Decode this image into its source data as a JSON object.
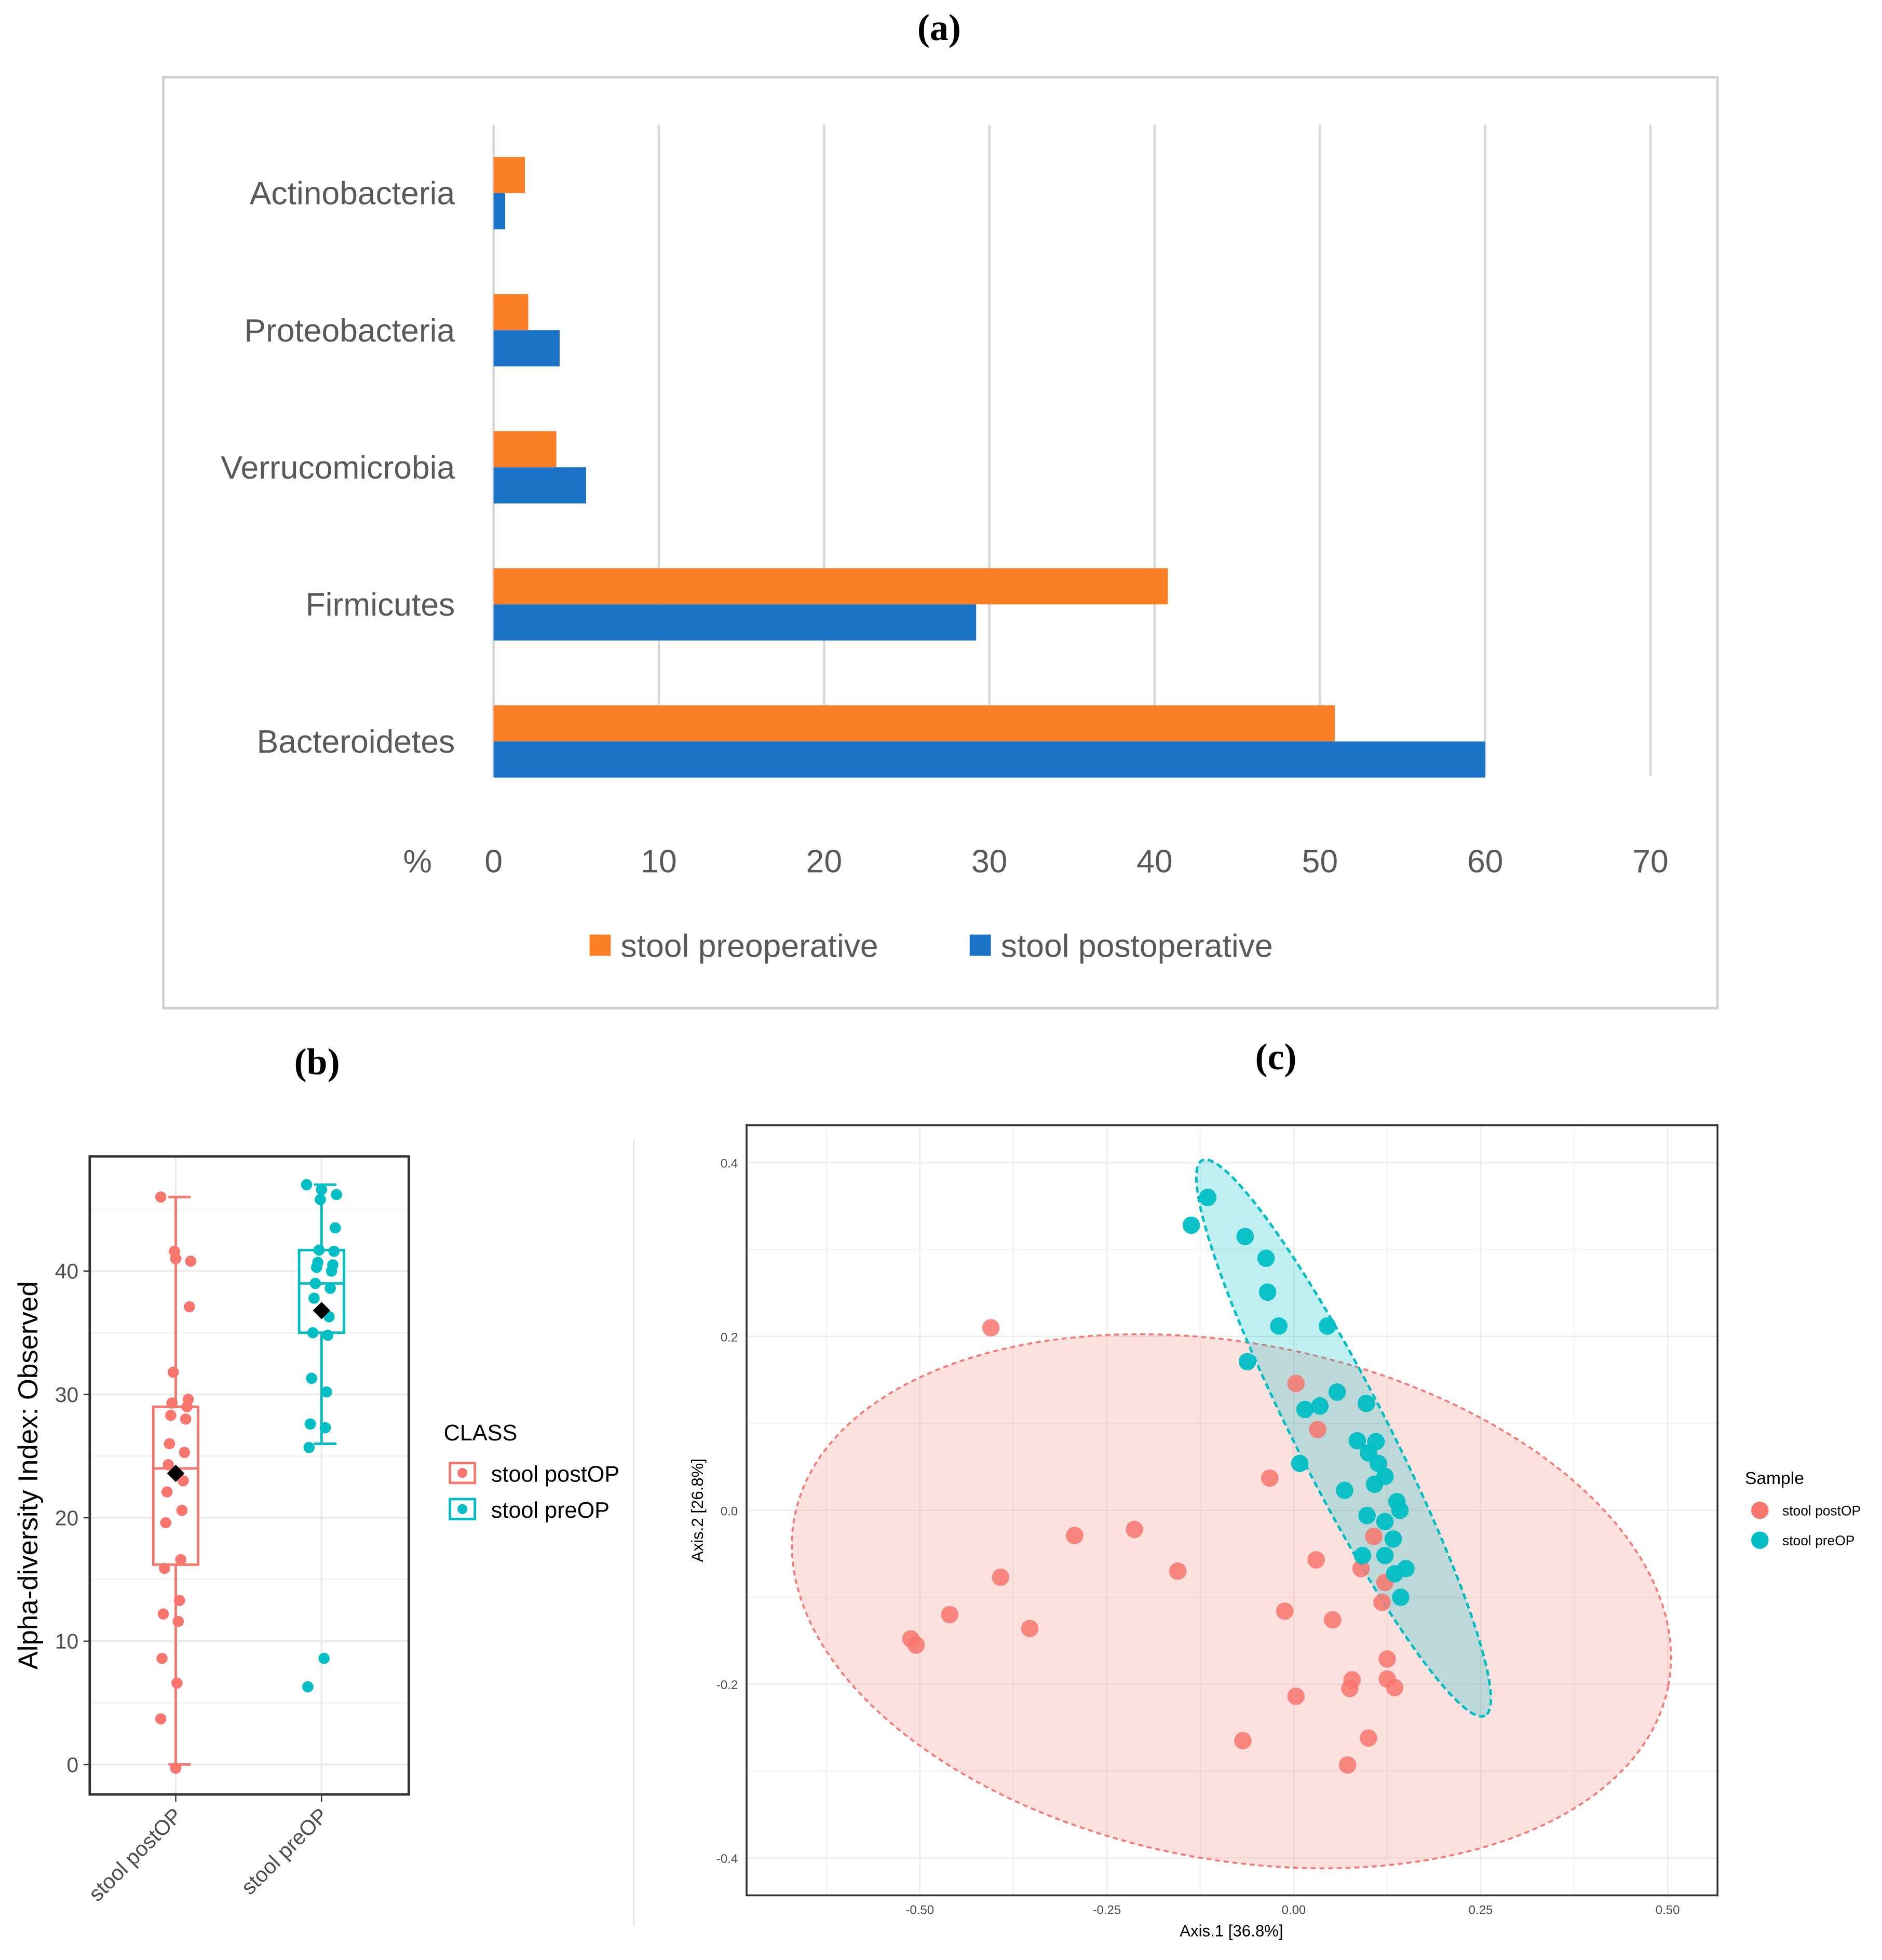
{
  "panel_labels": {
    "a": "(a)",
    "b": "(b)",
    "c": "(c)"
  },
  "colors": {
    "pre": "#fd7f27",
    "post": "#1b73c8",
    "postOP": "#f8766d",
    "preOP": "#00bfc4",
    "grid": "#d9d9d9"
  },
  "chart_data": [
    {
      "type": "bar",
      "orientation": "horizontal",
      "categories": [
        "Actinobacteria",
        "Proteobacteria",
        "Verrucomicrobia",
        "Firmicutes",
        "Bacteroidetes"
      ],
      "series": [
        {
          "name": "stool preoperative",
          "values": [
            1.9,
            2.1,
            3.8,
            40.8,
            50.9
          ]
        },
        {
          "name": "stool postoperative",
          "values": [
            0.7,
            4.0,
            5.6,
            29.2,
            60.0
          ]
        }
      ],
      "xlabel": "%",
      "xlim": [
        0,
        70
      ],
      "xticks": [
        "0",
        "10",
        "20",
        "30",
        "40",
        "50",
        "60",
        "70"
      ],
      "grid": true,
      "legend": "bottom"
    },
    {
      "type": "box",
      "ylabel": "Alpha-diversity Index: Observed",
      "ylim": [
        -2.5,
        49
      ],
      "yticks": [
        "0",
        "10",
        "20",
        "30",
        "40"
      ],
      "categories": [
        "stool postOP",
        "stool preOP"
      ],
      "legend_title": "CLASS",
      "legend": "right",
      "groups": [
        {
          "name": "stool postOP",
          "min": 0,
          "q1": 16.2,
          "median": 24,
          "q3": 29,
          "max": 46,
          "mean": 23.6,
          "points": [
            46,
            41,
            40.8,
            41.6,
            37.1,
            31.8,
            29.6,
            29.3,
            29,
            28.3,
            28,
            26,
            25.3,
            24.3,
            23,
            22.1,
            20.6,
            19.6,
            16.6,
            15.9,
            13.3,
            12.2,
            11.6,
            8.6,
            6.6,
            3.7,
            -0.3
          ]
        },
        {
          "name": "stool preOP",
          "min": 26,
          "q1": 35,
          "median": 39,
          "q3": 41.7,
          "max": 47,
          "mean": 36.8,
          "points": [
            47,
            46.6,
            46.2,
            45.8,
            43.5,
            41.7,
            41.6,
            40.7,
            40.5,
            40.3,
            40,
            39,
            38.6,
            37.8,
            36.3,
            35,
            34.8,
            31.3,
            30.2,
            27.6,
            27.3,
            25.7,
            8.6,
            6.3
          ]
        }
      ]
    },
    {
      "type": "scatter",
      "xlabel": "Axis.1   [36.8%]",
      "ylabel": "Axis.2   [26.8%]",
      "xlim": [
        -0.73,
        0.57
      ],
      "ylim": [
        -0.44,
        0.445
      ],
      "xticks": [
        "-0.50",
        "-0.25",
        "0.00",
        "0.25",
        "0.50"
      ],
      "yticks": [
        "0.4",
        "0.2",
        "0.0",
        "-0.2",
        "-0.4"
      ],
      "legend_title": "Sample",
      "legend": "right",
      "series": [
        {
          "name": "stool postOP",
          "x": [
            -0.405,
            0.003,
            0.032,
            -0.032,
            -0.293,
            -0.213,
            -0.155,
            -0.392,
            -0.46,
            -0.353,
            -0.512,
            -0.505,
            0.03,
            -0.012,
            0.052,
            0.107,
            0.09,
            0.122,
            0.118,
            0.125,
            0.078,
            0.075,
            0.125,
            0.135,
            0.003,
            -0.068,
            0.1,
            0.072
          ],
          "y": [
            0.21,
            0.146,
            0.093,
            0.037,
            -0.029,
            -0.022,
            -0.07,
            -0.077,
            -0.12,
            -0.136,
            -0.148,
            -0.155,
            -0.057,
            -0.116,
            -0.126,
            -0.03,
            -0.067,
            -0.083,
            -0.106,
            -0.171,
            -0.195,
            -0.205,
            -0.194,
            -0.204,
            -0.214,
            -0.265,
            -0.262,
            -0.293
          ]
        },
        {
          "name": "stool preOP",
          "x": [
            -0.115,
            -0.137,
            -0.065,
            -0.037,
            -0.035,
            -0.02,
            0.045,
            -0.062,
            0.058,
            0.097,
            0.035,
            0.015,
            0.085,
            0.11,
            0.1,
            0.113,
            0.008,
            0.122,
            0.108,
            0.068,
            0.138,
            0.142,
            0.098,
            0.122,
            0.133,
            0.092,
            0.122,
            0.15,
            0.135,
            0.143
          ],
          "y": [
            0.36,
            0.328,
            0.315,
            0.29,
            0.251,
            0.212,
            0.212,
            0.171,
            0.136,
            0.123,
            0.12,
            0.116,
            0.08,
            0.079,
            0.066,
            0.054,
            0.054,
            0.039,
            0.03,
            0.023,
            0.01,
            0,
            -0.006,
            -0.013,
            -0.033,
            -0.052,
            -0.052,
            -0.067,
            -0.073,
            -0.1
          ]
        }
      ]
    }
  ]
}
